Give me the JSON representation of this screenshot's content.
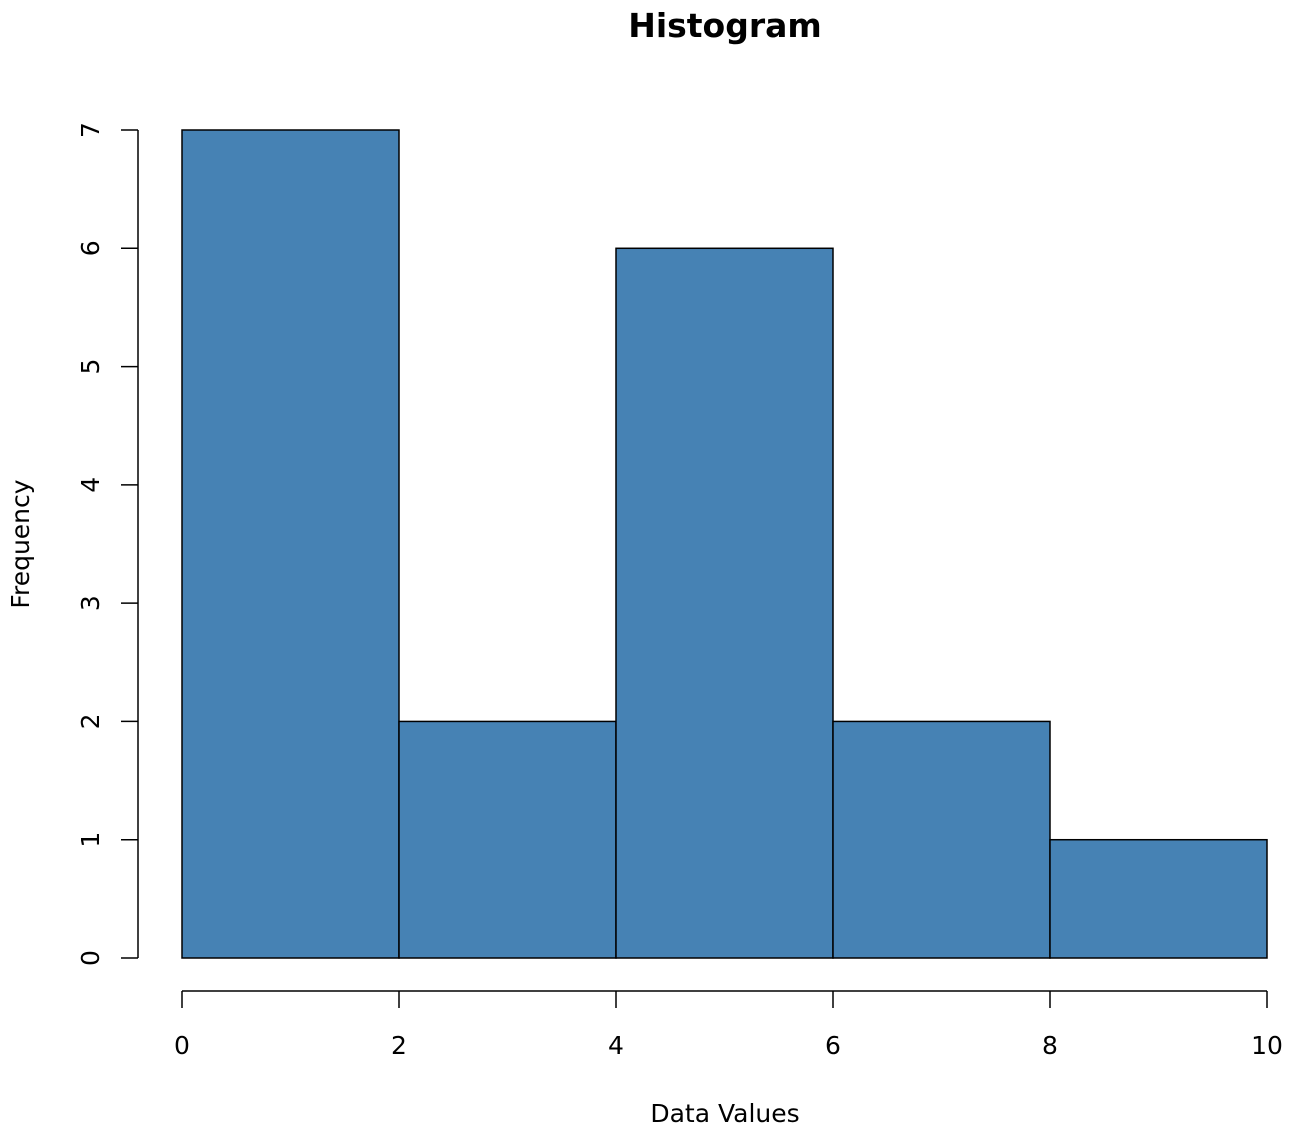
{
  "chart_data": {
    "type": "bar",
    "title": "Histogram",
    "xlabel": "Data Values",
    "ylabel": "Frequency",
    "bins": [
      {
        "start": 0,
        "end": 2,
        "count": 7
      },
      {
        "start": 2,
        "end": 4,
        "count": 2
      },
      {
        "start": 4,
        "end": 6,
        "count": 6
      },
      {
        "start": 6,
        "end": 8,
        "count": 2
      },
      {
        "start": 8,
        "end": 10,
        "count": 1
      }
    ],
    "xlim": [
      0,
      10
    ],
    "ylim": [
      0,
      7
    ],
    "x_ticks": [
      "0",
      "2",
      "4",
      "6",
      "8",
      "10"
    ],
    "y_ticks": [
      "0",
      "1",
      "2",
      "3",
      "4",
      "5",
      "6",
      "7"
    ],
    "bar_color": "#4682B4",
    "grid": false,
    "legend": "none"
  }
}
